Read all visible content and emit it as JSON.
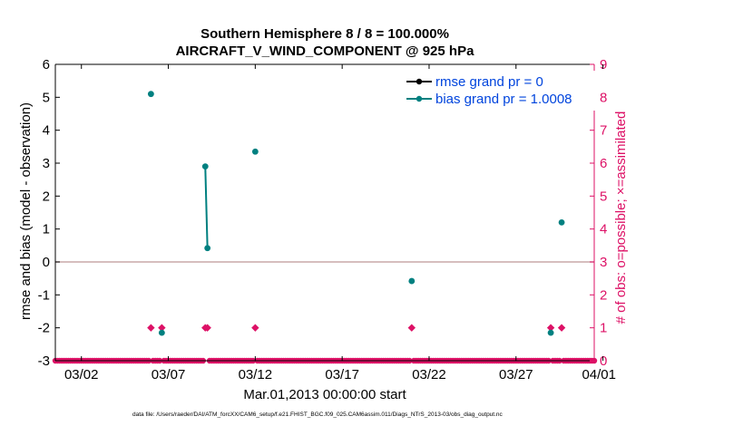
{
  "chart_data": {
    "type": "line",
    "title_line1": "Southern Hemisphere 8 / 8 = 100.000%",
    "title_line2": "AIRCRAFT_V_WIND_COMPONENT @ 925 hPa",
    "xlabel": "Mar.01,2013 00:00:00 start",
    "ylabel_left": "rmse and bias (model - observation)",
    "ylabel_right": "# of obs: o=possible; ×=assimilated",
    "footnote": "data file: /Users/raeder/DAI/ATM_forcXX/CAM6_setup/f.e21.FHIST_BGC.f09_025.CAM6assim.011/Diags_NTrS_2013-03/obs_diag_output.nc",
    "xlim": [
      0.5,
      31.5
    ],
    "ylim_left": [
      -3,
      6
    ],
    "ylim_right": [
      0,
      9
    ],
    "yticks_left": [
      "-3",
      "-2",
      "-1",
      "0",
      "1",
      "2",
      "3",
      "4",
      "5",
      "6"
    ],
    "yticks_right": [
      "0",
      "1",
      "2",
      "3",
      "4",
      "5",
      "6",
      "7",
      "8",
      "9"
    ],
    "xticks": [
      {
        "x": 2,
        "label": "03/02"
      },
      {
        "x": 7,
        "label": "03/07"
      },
      {
        "x": 12,
        "label": "03/12"
      },
      {
        "x": 17,
        "label": "03/17"
      },
      {
        "x": 22,
        "label": "03/22"
      },
      {
        "x": 27,
        "label": "03/27"
      },
      {
        "x": 32,
        "label": "04/01"
      }
    ],
    "series": [
      {
        "name": "rmse grand pr = 0",
        "color": "#000000",
        "x": [],
        "y": []
      },
      {
        "name": "bias grand pr = 1.0008",
        "color": "#008080",
        "segments": [
          [
            [
              6.0,
              5.1
            ]
          ],
          [
            [
              6.625,
              -2.15
            ]
          ],
          [
            [
              9.125,
              2.9
            ],
            [
              9.25,
              0.42
            ]
          ],
          [
            [
              12.0,
              3.35
            ]
          ],
          [
            [
              21.0,
              -0.58
            ]
          ],
          [
            [
              29.0,
              -2.15
            ]
          ],
          [
            [
              29.625,
              1.2
            ]
          ]
        ]
      }
    ],
    "obs_count": {
      "color": "#dd1166",
      "start": 0.5,
      "step": 0.125,
      "end": 31.5,
      "nonzero": [
        {
          "x": 6.0,
          "count": 1
        },
        {
          "x": 6.625,
          "count": 1
        },
        {
          "x": 9.125,
          "count": 1
        },
        {
          "x": 9.25,
          "count": 1
        },
        {
          "x": 12.0,
          "count": 1
        },
        {
          "x": 21.0,
          "count": 1
        },
        {
          "x": 29.0,
          "count": 1
        },
        {
          "x": 29.625,
          "count": 1
        }
      ]
    },
    "zero_line_color": "#c8a8a8"
  }
}
